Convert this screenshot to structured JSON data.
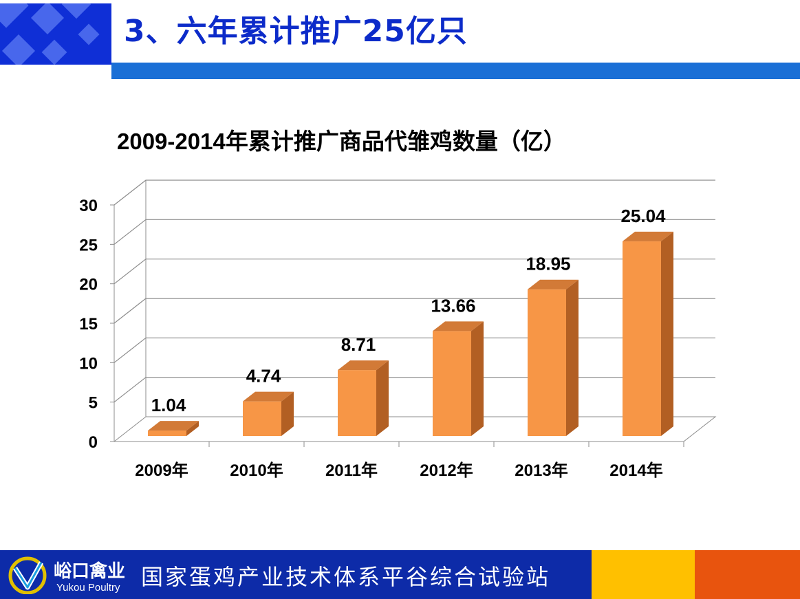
{
  "slide": {
    "title": "3、六年累计推广25亿只"
  },
  "chart_title": {
    "year_range": "2009-2014",
    "text": "年累计推广商品代雏鸡数量（亿）"
  },
  "chart_data": {
    "type": "bar",
    "title": "2009-2014年累计推广商品代雏鸡数量（亿）",
    "categories": [
      "2009年",
      "2010年",
      "2011年",
      "2012年",
      "2013年",
      "2014年"
    ],
    "values": [
      1.04,
      4.74,
      8.71,
      13.66,
      18.95,
      25.04
    ],
    "data_labels": [
      "1.04",
      "4.74",
      "8.71",
      "13.66",
      "18.95",
      "25.04"
    ],
    "yticks": [
      "0",
      "5",
      "10",
      "15",
      "20",
      "25",
      "30"
    ],
    "ylim": [
      0,
      30
    ],
    "grid": true,
    "three_d": true,
    "bar_color": "#f79646",
    "bar_side_color": "#b25f23",
    "bar_top_color": "#d27a37"
  },
  "footer": {
    "brand_cn": "峪口禽业",
    "brand_en": "Yukou Poultry",
    "text": "国家蛋鸡产业技术体系平谷综合试验站",
    "colors": {
      "navy": "#0d2ba8",
      "yellow": "#ffc000",
      "orange": "#e8540e"
    }
  },
  "icons": {
    "logo": "yukou-logo-icon"
  }
}
